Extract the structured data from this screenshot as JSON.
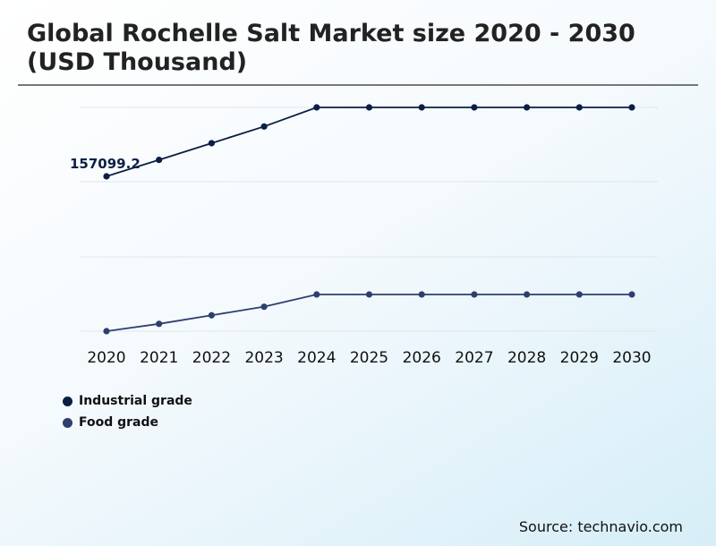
{
  "title": "Global Rochelle Salt Market size 2020 - 2030 (USD Thousand)",
  "source": "Source: technavio.com",
  "chart_data": {
    "type": "line",
    "title": "Global Rochelle Salt Market size 2020 - 2030 (USD Thousand)",
    "categories": [
      "2020",
      "2021",
      "2022",
      "2023",
      "2024",
      "2025",
      "2026",
      "2027",
      "2028",
      "2029",
      "2030"
    ],
    "series": [
      {
        "name": "Industrial grade",
        "color": "#0b1f45",
        "values": [
          157099.2,
          164000,
          171000,
          178000,
          186000,
          186000,
          186000,
          186000,
          186000,
          186000,
          186000
        ],
        "ylim": [
          150000,
          192000
        ],
        "data_label": "157099.2"
      },
      {
        "name": "Food grade",
        "color": "#2e3f6e",
        "values": [
          50000,
          53000,
          56500,
          60000,
          65000,
          65000,
          65000,
          65000,
          65000,
          65000,
          65000
        ],
        "ylim": [
          40000,
          80000
        ]
      }
    ],
    "grid": true,
    "legend_position": "bottom-left",
    "xlabel": "",
    "ylabel": ""
  }
}
